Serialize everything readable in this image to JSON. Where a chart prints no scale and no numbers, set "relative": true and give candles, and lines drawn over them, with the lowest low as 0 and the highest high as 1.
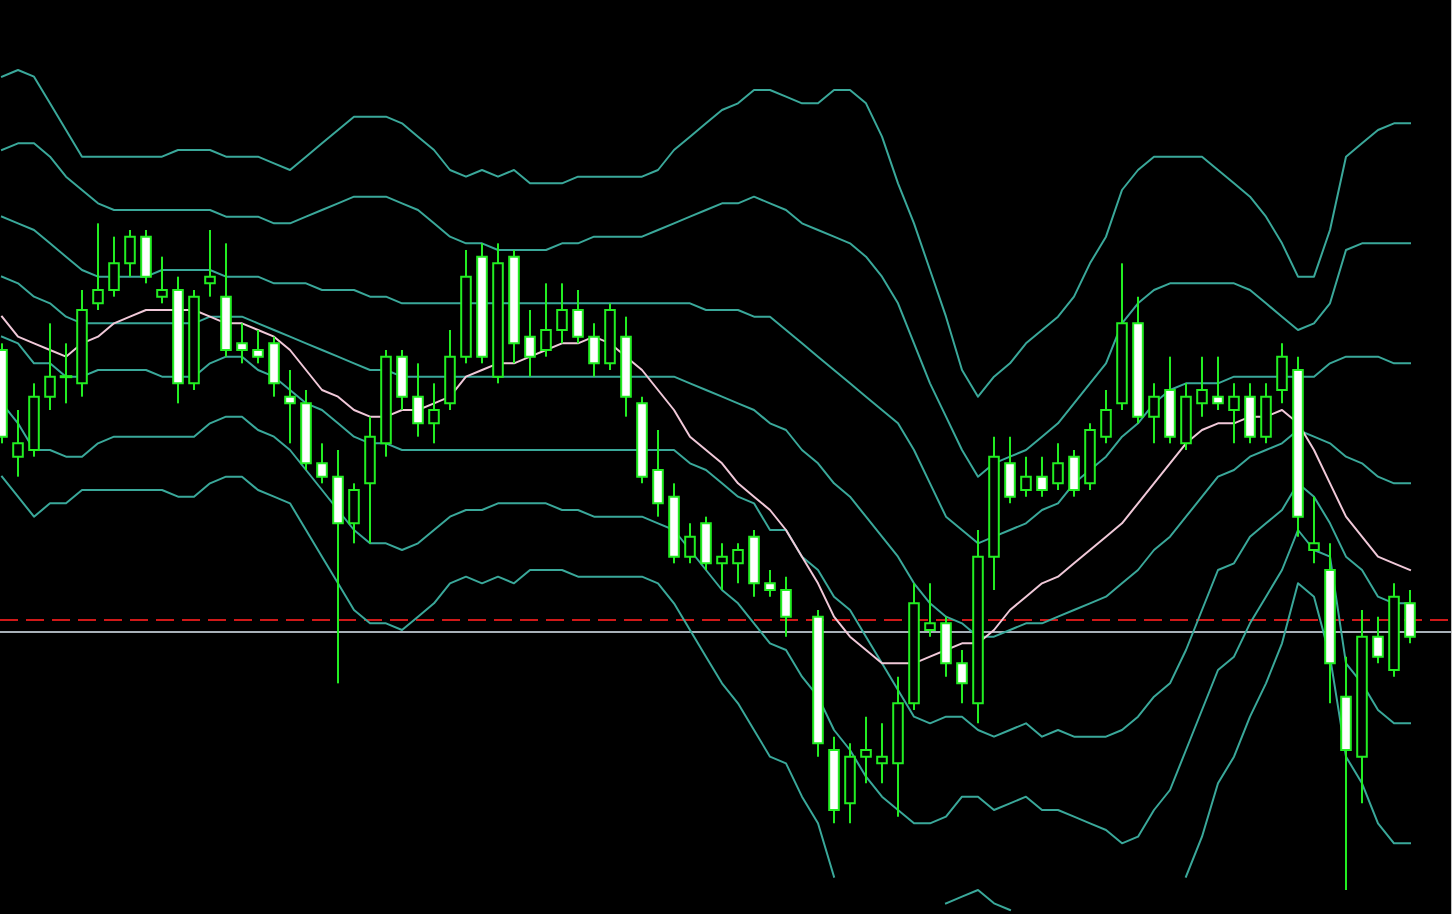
{
  "chart_data": {
    "type": "candlestick",
    "relative": true,
    "color": "#22ee22",
    "categories": [
      null,
      null,
      null,
      null,
      null,
      null,
      null,
      null,
      null,
      null,
      null,
      null,
      null,
      null,
      null,
      null,
      null,
      null,
      null,
      null,
      null,
      null,
      null,
      null,
      null,
      null,
      null,
      null,
      null,
      null,
      null,
      null,
      null,
      null,
      null,
      null,
      null,
      null,
      null,
      null,
      null,
      null,
      null,
      null,
      null,
      null,
      null,
      null,
      null,
      null,
      null,
      null,
      null,
      null,
      null,
      null,
      null,
      null,
      null,
      null,
      null,
      null,
      null,
      null,
      null,
      null,
      null,
      null,
      null,
      null,
      null,
      null,
      null,
      null,
      null,
      null,
      null,
      null,
      null,
      null,
      null,
      null,
      null,
      null,
      null,
      null,
      null,
      null,
      null
    ],
    "ohlc": [
      [
        0.81,
        0.82,
        0.67,
        0.68
      ],
      [
        0.65,
        0.72,
        0.62,
        0.67
      ],
      [
        0.66,
        0.76,
        0.65,
        0.74
      ],
      [
        0.74,
        0.85,
        0.72,
        0.77
      ],
      [
        0.77,
        0.82,
        0.73,
        0.77
      ],
      [
        0.76,
        0.9,
        0.74,
        0.87
      ],
      [
        0.88,
        1.0,
        0.87,
        0.9
      ],
      [
        0.9,
        0.98,
        0.89,
        0.94
      ],
      [
        0.94,
        0.99,
        0.92,
        0.98
      ],
      [
        0.98,
        0.99,
        0.91,
        0.92
      ],
      [
        0.89,
        0.95,
        0.88,
        0.9
      ],
      [
        0.9,
        0.92,
        0.73,
        0.76
      ],
      [
        0.76,
        0.9,
        0.75,
        0.89
      ],
      [
        0.91,
        0.99,
        0.89,
        0.92
      ],
      [
        0.89,
        0.97,
        0.8,
        0.81
      ],
      [
        0.82,
        0.85,
        0.79,
        0.81
      ],
      [
        0.81,
        0.84,
        0.79,
        0.8
      ],
      [
        0.82,
        0.83,
        0.74,
        0.76
      ],
      [
        0.74,
        0.78,
        0.67,
        0.73
      ],
      [
        0.73,
        0.75,
        0.63,
        0.64
      ],
      [
        0.64,
        0.67,
        0.61,
        0.62
      ],
      [
        0.62,
        0.66,
        0.31,
        0.55
      ],
      [
        0.55,
        0.61,
        0.52,
        0.6
      ],
      [
        0.61,
        0.71,
        0.52,
        0.68
      ],
      [
        0.67,
        0.81,
        0.65,
        0.8
      ],
      [
        0.8,
        0.81,
        0.72,
        0.74
      ],
      [
        0.74,
        0.79,
        0.68,
        0.7
      ],
      [
        0.7,
        0.76,
        0.67,
        0.72
      ],
      [
        0.73,
        0.84,
        0.72,
        0.8
      ],
      [
        0.8,
        0.96,
        0.79,
        0.92
      ],
      [
        0.95,
        0.97,
        0.79,
        0.8
      ],
      [
        0.77,
        0.97,
        0.76,
        0.94
      ],
      [
        0.95,
        0.96,
        0.79,
        0.82
      ],
      [
        0.83,
        0.87,
        0.77,
        0.8
      ],
      [
        0.81,
        0.91,
        0.8,
        0.84
      ],
      [
        0.84,
        0.91,
        0.82,
        0.87
      ],
      [
        0.87,
        0.9,
        0.82,
        0.83
      ],
      [
        0.83,
        0.85,
        0.77,
        0.79
      ],
      [
        0.79,
        0.88,
        0.78,
        0.87
      ],
      [
        0.83,
        0.86,
        0.71,
        0.74
      ],
      [
        0.73,
        0.74,
        0.61,
        0.62
      ],
      [
        0.63,
        0.69,
        0.56,
        0.58
      ],
      [
        0.59,
        0.61,
        0.49,
        0.5
      ],
      [
        0.5,
        0.55,
        0.49,
        0.53
      ],
      [
        0.55,
        0.56,
        0.48,
        0.49
      ],
      [
        0.49,
        0.52,
        0.45,
        0.5
      ],
      [
        0.49,
        0.52,
        0.46,
        0.51
      ],
      [
        0.53,
        0.54,
        0.44,
        0.46
      ],
      [
        0.46,
        0.48,
        0.44,
        0.45
      ],
      [
        0.45,
        0.47,
        0.38,
        0.41
      ],
      null,
      [
        0.41,
        0.42,
        0.2,
        0.22
      ],
      [
        0.21,
        0.23,
        0.1,
        0.12
      ],
      [
        0.13,
        0.22,
        0.1,
        0.2
      ],
      [
        0.2,
        0.26,
        0.16,
        0.21
      ],
      [
        0.19,
        0.25,
        0.16,
        0.2
      ],
      [
        0.19,
        0.32,
        0.11,
        0.28
      ],
      [
        0.28,
        0.46,
        0.27,
        0.43
      ],
      [
        0.39,
        0.46,
        0.38,
        0.4
      ],
      [
        0.4,
        0.41,
        0.32,
        0.34
      ],
      [
        0.34,
        0.36,
        0.28,
        0.31
      ],
      [
        0.28,
        0.54,
        0.25,
        0.5
      ],
      [
        0.5,
        0.68,
        0.45,
        0.65
      ],
      [
        0.64,
        0.68,
        0.58,
        0.59
      ],
      [
        0.6,
        0.65,
        0.59,
        0.62
      ],
      [
        0.62,
        0.65,
        0.59,
        0.6
      ],
      [
        0.61,
        0.67,
        0.6,
        0.64
      ],
      [
        0.65,
        0.66,
        0.59,
        0.6
      ],
      [
        0.61,
        0.7,
        0.6,
        0.69
      ],
      [
        0.68,
        0.75,
        0.67,
        0.72
      ],
      [
        0.73,
        0.94,
        0.72,
        0.85
      ],
      [
        0.85,
        0.89,
        0.7,
        0.71
      ],
      [
        0.71,
        0.76,
        0.67,
        0.74
      ],
      [
        0.75,
        0.8,
        0.67,
        0.68
      ],
      [
        0.67,
        0.76,
        0.66,
        0.74
      ],
      [
        0.73,
        0.8,
        0.71,
        0.75
      ],
      [
        0.74,
        0.8,
        0.72,
        0.73
      ],
      [
        0.72,
        0.76,
        0.67,
        0.74
      ],
      [
        0.74,
        0.76,
        0.67,
        0.68
      ],
      [
        0.68,
        0.76,
        0.67,
        0.74
      ],
      [
        0.75,
        0.82,
        0.73,
        0.8
      ],
      [
        0.78,
        0.8,
        0.53,
        0.56
      ],
      [
        0.51,
        0.59,
        0.49,
        0.52
      ],
      [
        0.48,
        0.52,
        0.28,
        0.34
      ],
      [
        0.29,
        0.35,
        0.0,
        0.21
      ],
      [
        0.2,
        0.42,
        0.13,
        0.38
      ],
      [
        0.38,
        0.41,
        0.34,
        0.35
      ],
      [
        0.33,
        0.46,
        0.32,
        0.44
      ],
      [
        0.43,
        0.45,
        0.37,
        0.38
      ]
    ],
    "colors": [
      "#ffffff",
      "#000000",
      "#000000",
      "#000000",
      "#22ee22",
      "#000000",
      "#000000",
      "#000000",
      "#000000",
      "#ffffff",
      "#000000",
      "#ffffff",
      "#000000",
      "#000000",
      "#ffffff",
      "#ffffff",
      "#ffffff",
      "#ffffff",
      "#ffffff",
      "#ffffff",
      "#ffffff",
      "#ffffff",
      "#000000",
      "#000000",
      "#000000",
      "#ffffff",
      "#ffffff",
      "#000000",
      "#000000",
      "#000000",
      "#ffffff",
      "#000000",
      "#ffffff",
      "#ffffff",
      "#000000",
      "#000000",
      "#ffffff",
      "#ffffff",
      "#000000",
      "#ffffff",
      "#ffffff",
      "#ffffff",
      "#ffffff",
      "#000000",
      "#ffffff",
      "#000000",
      "#000000",
      "#ffffff",
      "#ffffff",
      "#ffffff",
      null,
      "#ffffff",
      "#ffffff",
      "#000000",
      "#000000",
      "#000000",
      "#000000",
      "#000000",
      "#000000",
      "#ffffff",
      "#ffffff",
      "#000000",
      "#000000",
      "#ffffff",
      "#000000",
      "#ffffff",
      "#000000",
      "#ffffff",
      "#000000",
      "#000000",
      "#000000",
      "#ffffff",
      "#000000",
      "#ffffff",
      "#000000",
      "#000000",
      "#ffffff",
      "#000000",
      "#ffffff",
      "#000000",
      "#000000",
      "#ffffff",
      "#000000",
      "#ffffff",
      "#ffffff",
      "#000000",
      "#ffffff",
      "#000000",
      "#ffffff"
    ],
    "series": [
      {
        "type": "line",
        "color": "#3aa89a",
        "values": [
          1.22,
          1.23,
          1.22,
          1.18,
          1.14,
          1.1,
          1.1,
          1.1,
          1.1,
          1.1,
          1.1,
          1.11,
          1.11,
          1.11,
          1.1,
          1.1,
          1.1,
          1.09,
          1.08,
          1.1,
          1.12,
          1.14,
          1.16,
          1.16,
          1.16,
          1.15,
          1.13,
          1.11,
          1.08,
          1.07,
          1.08,
          1.07,
          1.08,
          1.06,
          1.06,
          1.06,
          1.07,
          1.07,
          1.07,
          1.07,
          1.07,
          1.08,
          1.11,
          1.13,
          1.15,
          1.17,
          1.18,
          1.2,
          1.2,
          1.19,
          1.18,
          1.18,
          1.2,
          1.2,
          1.18,
          1.13,
          1.06,
          1.0,
          0.93,
          0.86,
          0.78,
          0.74,
          0.77,
          0.79,
          0.82,
          0.84,
          0.86,
          0.89,
          0.94,
          0.98,
          1.05,
          1.08,
          1.1,
          1.1,
          1.1,
          1.1,
          1.08,
          1.06,
          1.04,
          1.01,
          0.97,
          0.92,
          0.92,
          0.99,
          1.1,
          1.12,
          1.14,
          1.15,
          1.15
        ]
      },
      {
        "type": "line",
        "color": "#3aa89a",
        "values": [
          1.11,
          1.12,
          1.12,
          1.1,
          1.07,
          1.05,
          1.03,
          1.02,
          1.02,
          1.02,
          1.02,
          1.02,
          1.02,
          1.02,
          1.01,
          1.01,
          1.01,
          1.0,
          1.0,
          1.01,
          1.02,
          1.03,
          1.04,
          1.04,
          1.04,
          1.03,
          1.02,
          1.0,
          0.98,
          0.97,
          0.97,
          0.96,
          0.96,
          0.96,
          0.96,
          0.97,
          0.97,
          0.98,
          0.98,
          0.98,
          0.98,
          0.99,
          1.0,
          1.01,
          1.02,
          1.03,
          1.03,
          1.04,
          1.03,
          1.02,
          1.0,
          0.99,
          0.98,
          0.97,
          0.95,
          0.92,
          0.88,
          0.82,
          0.76,
          0.71,
          0.66,
          0.62,
          0.64,
          0.65,
          0.66,
          0.68,
          0.7,
          0.73,
          0.76,
          0.79,
          0.85,
          0.88,
          0.9,
          0.91,
          0.91,
          0.91,
          0.91,
          0.91,
          0.9,
          0.88,
          0.86,
          0.84,
          0.85,
          0.88,
          0.96,
          0.97,
          0.97,
          0.97,
          0.97
        ]
      },
      {
        "type": "line",
        "color": "#3aa89a",
        "values": [
          1.01,
          1.0,
          0.99,
          0.97,
          0.95,
          0.93,
          0.92,
          0.92,
          0.92,
          0.92,
          0.93,
          0.93,
          0.93,
          0.93,
          0.92,
          0.92,
          0.92,
          0.91,
          0.91,
          0.91,
          0.9,
          0.9,
          0.9,
          0.89,
          0.89,
          0.88,
          0.88,
          0.88,
          0.88,
          0.88,
          0.88,
          0.88,
          0.88,
          0.88,
          0.88,
          0.88,
          0.88,
          0.88,
          0.88,
          0.88,
          0.88,
          0.88,
          0.88,
          0.88,
          0.87,
          0.87,
          0.87,
          0.86,
          0.86,
          0.84,
          0.82,
          0.8,
          0.78,
          0.76,
          0.74,
          0.72,
          0.7,
          0.66,
          0.61,
          0.56,
          0.54,
          0.52,
          0.53,
          0.54,
          0.55,
          0.57,
          0.58,
          0.61,
          0.63,
          0.65,
          0.68,
          0.7,
          0.73,
          0.75,
          0.76,
          0.76,
          0.76,
          0.77,
          0.77,
          0.77,
          0.77,
          0.77,
          0.77,
          0.79,
          0.8,
          0.8,
          0.8,
          0.79,
          0.79
        ]
      },
      {
        "type": "line",
        "color": "#3aa89a",
        "values": [
          0.92,
          0.91,
          0.89,
          0.88,
          0.86,
          0.85,
          0.85,
          0.85,
          0.85,
          0.85,
          0.85,
          0.85,
          0.85,
          0.86,
          0.86,
          0.86,
          0.85,
          0.84,
          0.83,
          0.82,
          0.81,
          0.8,
          0.79,
          0.78,
          0.78,
          0.77,
          0.77,
          0.77,
          0.77,
          0.77,
          0.77,
          0.77,
          0.77,
          0.77,
          0.77,
          0.77,
          0.77,
          0.77,
          0.77,
          0.77,
          0.77,
          0.77,
          0.77,
          0.76,
          0.75,
          0.74,
          0.73,
          0.72,
          0.7,
          0.69,
          0.66,
          0.64,
          0.61,
          0.59,
          0.56,
          0.53,
          0.5,
          0.46,
          0.43,
          0.41,
          0.4,
          0.38,
          0.38,
          0.39,
          0.4,
          0.4,
          0.41,
          0.42,
          0.43,
          0.44,
          0.46,
          0.48,
          0.51,
          0.53,
          0.56,
          0.59,
          0.62,
          0.63,
          0.65,
          0.66,
          0.67,
          0.69,
          0.68,
          0.67,
          0.65,
          0.64,
          0.62,
          0.61,
          0.61
        ]
      },
      {
        "type": "line",
        "color": "#3aa89a",
        "values": [
          0.83,
          0.82,
          0.79,
          0.79,
          0.77,
          0.77,
          0.78,
          0.78,
          0.78,
          0.78,
          0.77,
          0.77,
          0.77,
          0.79,
          0.8,
          0.8,
          0.78,
          0.77,
          0.75,
          0.73,
          0.72,
          0.7,
          0.68,
          0.67,
          0.67,
          0.66,
          0.66,
          0.66,
          0.66,
          0.66,
          0.66,
          0.66,
          0.66,
          0.66,
          0.66,
          0.66,
          0.66,
          0.66,
          0.66,
          0.66,
          0.66,
          0.66,
          0.66,
          0.64,
          0.63,
          0.61,
          0.59,
          0.58,
          0.54,
          0.54,
          0.5,
          0.48,
          0.44,
          0.42,
          0.38,
          0.34,
          0.3,
          0.26,
          0.25,
          0.26,
          0.26,
          0.24,
          0.23,
          0.24,
          0.25,
          0.23,
          0.24,
          0.23,
          0.23,
          0.23,
          0.24,
          0.26,
          0.29,
          0.31,
          0.36,
          0.42,
          0.48,
          0.49,
          0.53,
          0.55,
          0.57,
          0.61,
          0.59,
          0.55,
          0.5,
          0.48,
          0.44,
          0.43,
          0.43
        ]
      },
      {
        "type": "line",
        "color": "#3aa89a",
        "values": [
          0.73,
          0.7,
          0.66,
          0.66,
          0.65,
          0.65,
          0.67,
          0.68,
          0.68,
          0.68,
          0.68,
          0.68,
          0.68,
          0.7,
          0.71,
          0.71,
          0.69,
          0.68,
          0.66,
          0.63,
          0.6,
          0.57,
          0.54,
          0.52,
          0.52,
          0.51,
          0.52,
          0.54,
          0.56,
          0.57,
          0.57,
          0.58,
          0.58,
          0.58,
          0.58,
          0.57,
          0.57,
          0.56,
          0.56,
          0.56,
          0.56,
          0.55,
          0.54,
          0.51,
          0.48,
          0.45,
          0.43,
          0.4,
          0.37,
          0.36,
          0.32,
          0.29,
          0.24,
          0.21,
          0.17,
          0.14,
          0.12,
          0.1,
          0.1,
          0.11,
          0.14,
          0.14,
          0.12,
          0.13,
          0.14,
          0.12,
          0.12,
          0.11,
          0.1,
          0.09,
          0.07,
          0.08,
          0.12,
          0.15,
          0.21,
          0.27,
          0.33,
          0.35,
          0.4,
          0.44,
          0.48,
          0.54,
          0.51,
          0.5,
          0.34,
          0.31,
          0.27,
          0.25,
          0.25
        ]
      },
      {
        "type": "line",
        "color": "#3aa89a",
        "values": [
          0.62,
          0.59,
          0.56,
          0.58,
          0.58,
          0.6,
          0.6,
          0.6,
          0.6,
          0.6,
          0.6,
          0.59,
          0.59,
          0.61,
          0.62,
          0.62,
          0.6,
          0.59,
          0.58,
          0.54,
          0.5,
          0.46,
          0.42,
          0.4,
          0.4,
          0.39,
          0.41,
          0.43,
          0.46,
          0.47,
          0.46,
          0.47,
          0.46,
          0.48,
          0.48,
          0.48,
          0.47,
          0.47,
          0.47,
          0.47,
          0.47,
          0.46,
          0.43,
          0.39,
          0.35,
          0.31,
          0.28,
          0.24,
          0.2,
          0.19,
          0.14,
          0.1,
          0.02,
          null,
          null,
          null,
          null,
          null,
          null,
          -0.02,
          -0.01,
          0.0,
          -0.02,
          -0.03,
          null,
          null,
          null,
          null,
          null,
          null,
          null,
          null,
          null,
          null,
          0.02,
          0.08,
          0.16,
          0.2,
          0.26,
          0.31,
          0.37,
          0.46,
          0.44,
          0.35,
          0.2,
          0.16,
          0.1,
          0.07,
          0.07
        ]
      },
      {
        "type": "line",
        "color": "#f0c8d8",
        "values": [
          0.86,
          0.83,
          0.82,
          0.81,
          0.8,
          0.82,
          0.83,
          0.85,
          0.86,
          0.87,
          0.87,
          0.87,
          0.87,
          0.86,
          0.85,
          0.85,
          0.84,
          0.83,
          0.81,
          0.78,
          0.75,
          0.74,
          0.72,
          0.71,
          0.71,
          0.72,
          0.72,
          0.73,
          0.74,
          0.77,
          0.78,
          0.79,
          0.79,
          0.8,
          0.81,
          0.82,
          0.82,
          0.83,
          0.82,
          0.8,
          0.78,
          0.75,
          0.72,
          0.68,
          0.66,
          0.64,
          0.61,
          0.59,
          0.57,
          0.54,
          0.5,
          0.46,
          0.41,
          0.38,
          0.36,
          0.34,
          0.34,
          0.34,
          0.35,
          0.36,
          0.37,
          0.37,
          0.39,
          0.42,
          0.44,
          0.46,
          0.47,
          0.49,
          0.51,
          0.53,
          0.55,
          0.58,
          0.61,
          0.64,
          0.67,
          0.69,
          0.7,
          0.7,
          0.71,
          0.71,
          0.72,
          0.7,
          0.66,
          0.61,
          0.56,
          0.53,
          0.5,
          0.49,
          0.48
        ]
      }
    ],
    "ref_lines": [
      {
        "axis": "y",
        "value": 0.405,
        "color": "#d01818",
        "line_style": "dashed"
      },
      {
        "axis": "y",
        "value": 0.387,
        "color": "#a8b0b8",
        "line_style": "solid"
      }
    ]
  }
}
